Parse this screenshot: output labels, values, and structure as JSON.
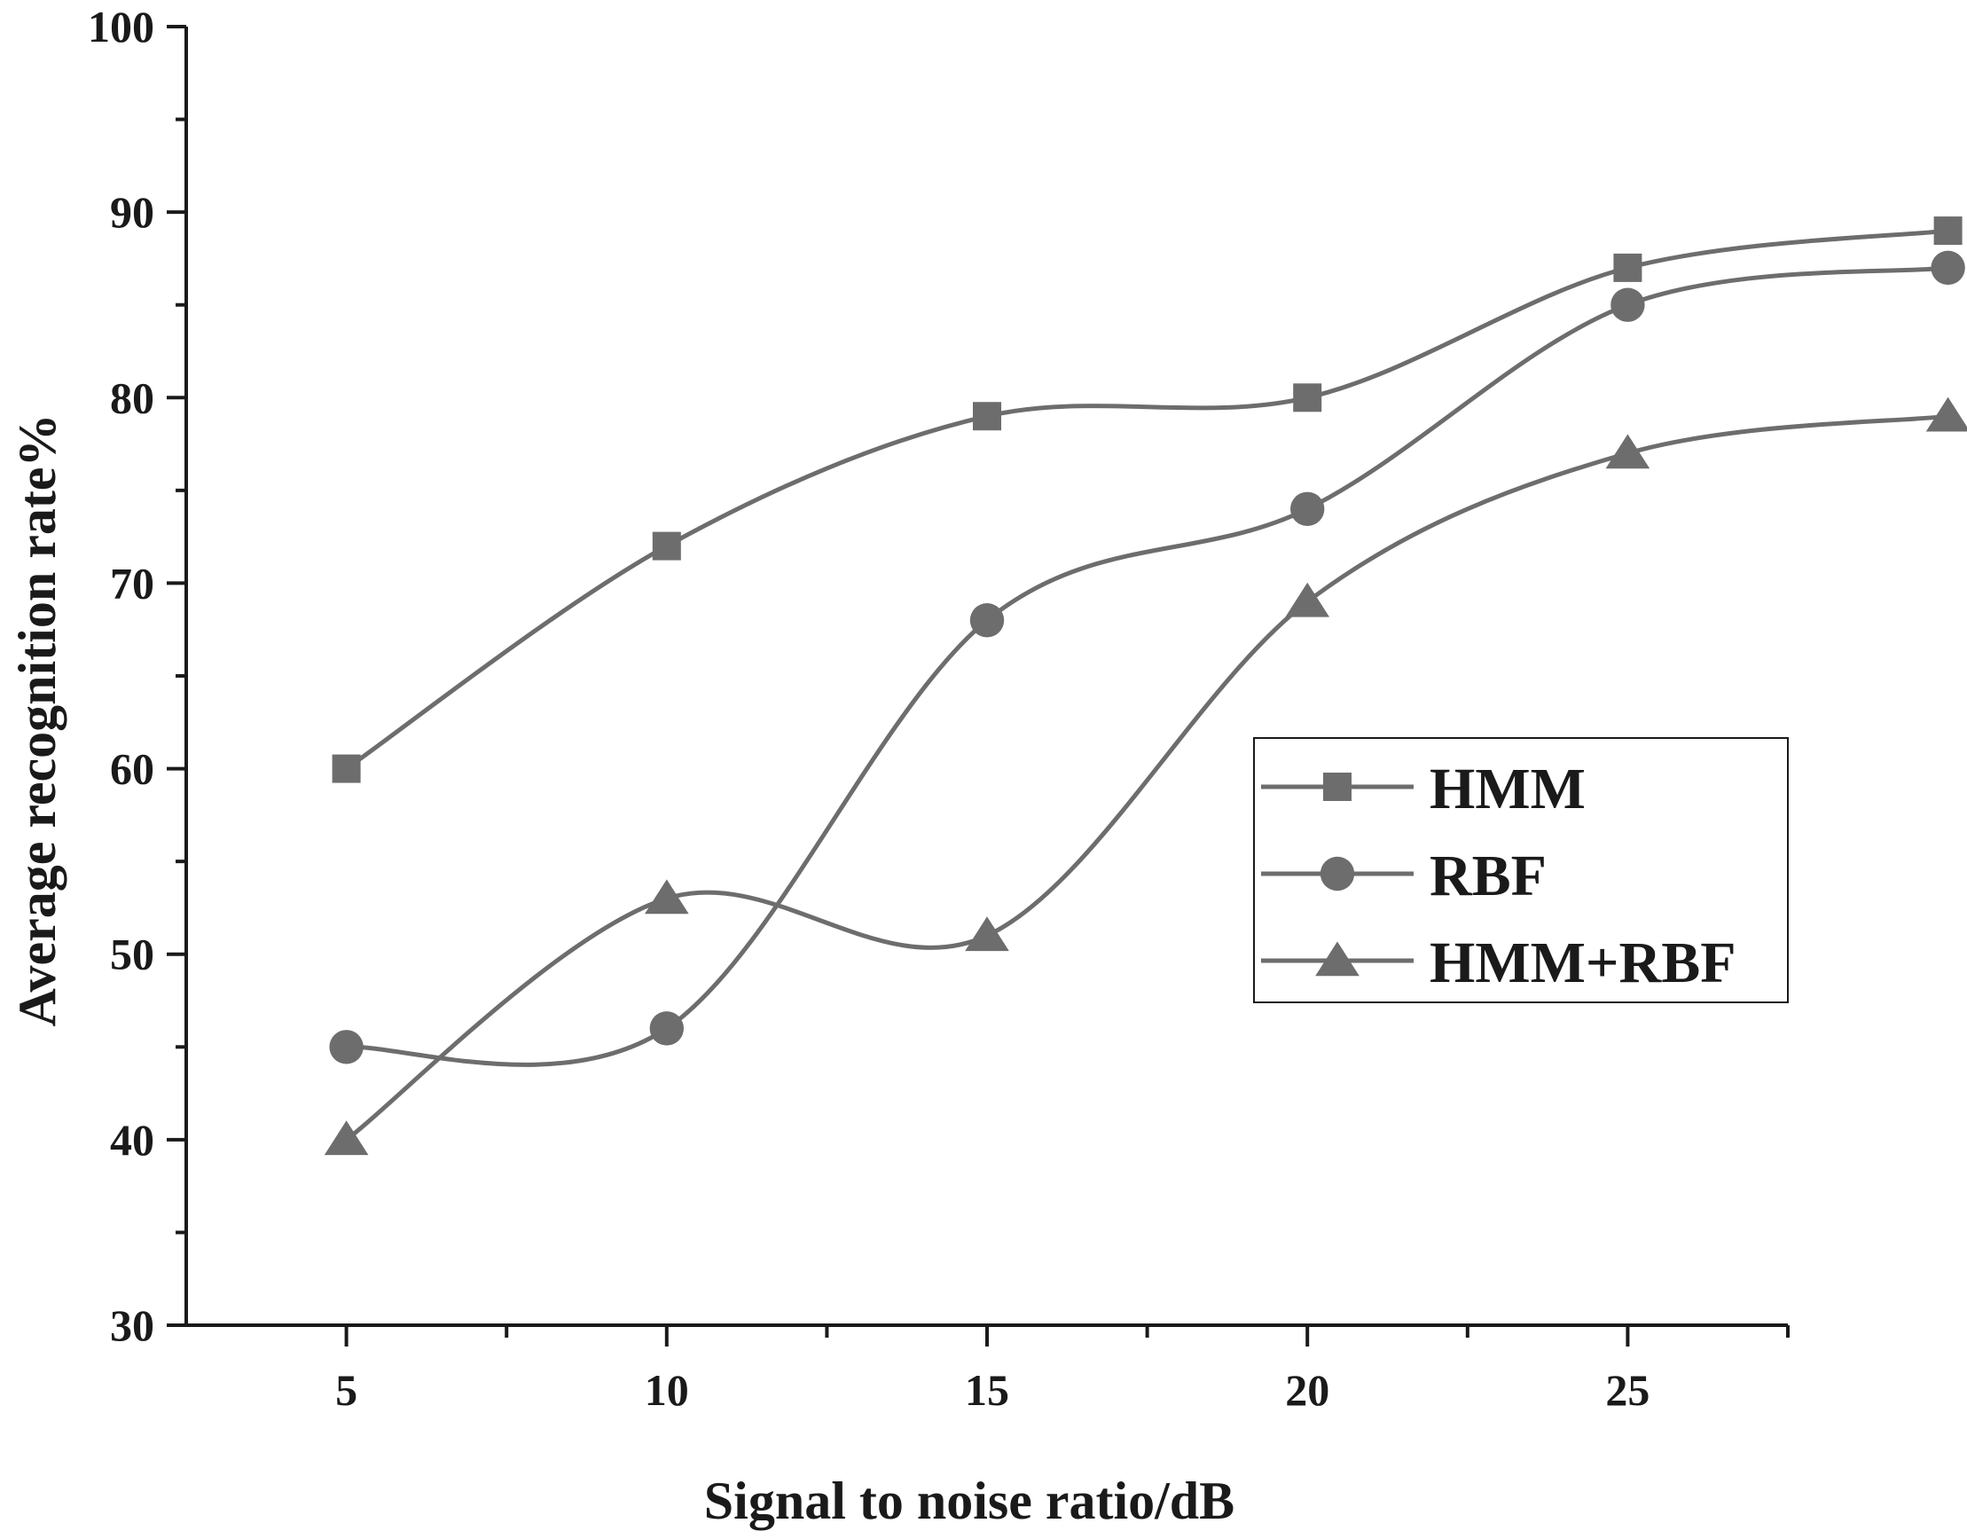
{
  "chart_data": {
    "type": "line",
    "title": "",
    "xlabel": "Signal to noise ratio/dB",
    "ylabel": "Average recognition rate%",
    "x": [
      5,
      10,
      15,
      20,
      25,
      30
    ],
    "xlim": [
      2.5,
      27.5
    ],
    "ylim": [
      30,
      100
    ],
    "x_ticks": [
      5,
      10,
      15,
      20,
      25
    ],
    "y_ticks": [
      30,
      40,
      50,
      60,
      70,
      80,
      90,
      100
    ],
    "x_minor_ticks": [
      7.5,
      12.5,
      17.5,
      22.5,
      27.5
    ],
    "y_minor_ticks": [
      35,
      45,
      55,
      65,
      75,
      85,
      95
    ],
    "grid": false,
    "smooth": true,
    "legend_position": "right-middle",
    "line_color": "#6d6d6d",
    "axis_color": "#1a1a1a",
    "series": [
      {
        "name": "HMM",
        "marker": "square",
        "values": [
          60,
          72,
          79,
          80,
          87,
          89
        ]
      },
      {
        "name": "RBF",
        "marker": "circle",
        "values": [
          45,
          46,
          68,
          74,
          85,
          87
        ]
      },
      {
        "name": "HMM+RBF",
        "marker": "triangle",
        "values": [
          40,
          53,
          51,
          69,
          77,
          79
        ]
      }
    ]
  }
}
